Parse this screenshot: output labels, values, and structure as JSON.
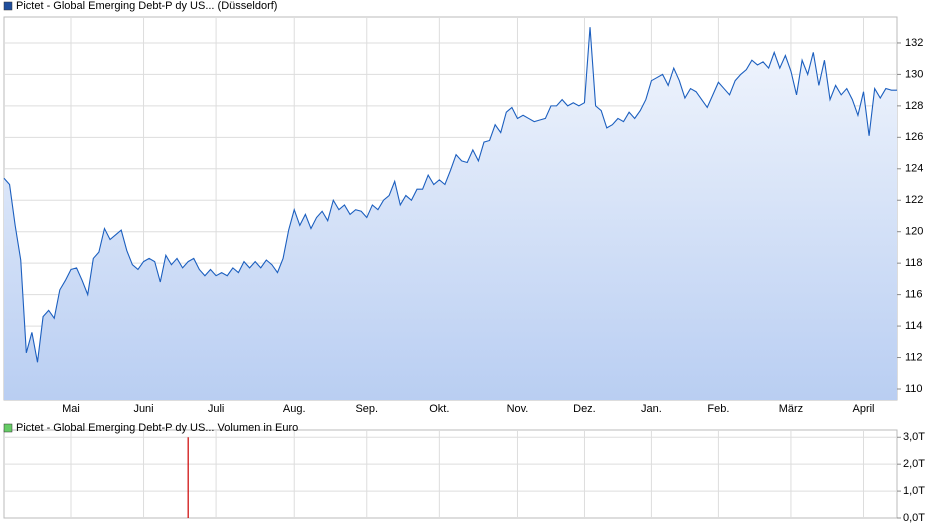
{
  "chart_data": [
    {
      "type": "line",
      "series": [
        {
          "name": "Pictet - Global Emerging Debt-P dy US... (Düsseldorf)",
          "color": "#1c5fbf",
          "legend_color": "#1f4e9c",
          "values": [
            123.4,
            123,
            120.4,
            118.2,
            112.3,
            113.6,
            111.7,
            114.6,
            115,
            114.5,
            116.3,
            116.9,
            117.6,
            117.7,
            116.9,
            116,
            118.3,
            118.7,
            120.2,
            119.5,
            119.8,
            120.1,
            118.8,
            117.9,
            117.6,
            118.1,
            118.3,
            118.1,
            116.8,
            118.5,
            117.9,
            118.3,
            117.7,
            118.1,
            118.3,
            117.6,
            117.2,
            117.6,
            117.2,
            117.4,
            117.2,
            117.7,
            117.4,
            118.1,
            117.7,
            118.1,
            117.7,
            118.2,
            117.9,
            117.4,
            118.3,
            120.1,
            121.4,
            120.4,
            121.1,
            120.2,
            120.9,
            121.3,
            120.7,
            122,
            121.4,
            121.7,
            121.1,
            121.4,
            121.3,
            120.9,
            121.7,
            121.4,
            122,
            122.3,
            123.2,
            121.7,
            122.3,
            122,
            122.7,
            122.7,
            123.6,
            123,
            123.3,
            123,
            123.9,
            124.9,
            124.5,
            124.4,
            125.2,
            124.5,
            125.7,
            125.8,
            126.8,
            126.3,
            127.6,
            127.9,
            127.2,
            127.4,
            127.2,
            127,
            127.1,
            127.2,
            128,
            128,
            128.4,
            128,
            128.2,
            128,
            128.2,
            133,
            128,
            127.7,
            126.6,
            126.8,
            127.2,
            127,
            127.6,
            127.2,
            127.7,
            128.4,
            129.6,
            129.8,
            130,
            129.3,
            130.4,
            129.6,
            128.5,
            129.1,
            128.9,
            128.4,
            127.9,
            128.7,
            129.5,
            129.1,
            128.7,
            129.6,
            130,
            130.3,
            130.9,
            130.6,
            130.8,
            130.4,
            131.4,
            130.4,
            131.2,
            130.2,
            128.7,
            130.9,
            130,
            131.4,
            129.3,
            130.9,
            128.4,
            129.3,
            128.7,
            129.1,
            128.4,
            127.4,
            128.9,
            126.1,
            129.1,
            128.5,
            129.1,
            129,
            129
          ]
        }
      ],
      "xlim": [
        0,
        160
      ],
      "xticks": [
        {
          "value": 12,
          "label": "Mai"
        },
        {
          "value": 25,
          "label": "Juni"
        },
        {
          "value": 38,
          "label": "Juli"
        },
        {
          "value": 52,
          "label": "Aug."
        },
        {
          "value": 65,
          "label": "Sep."
        },
        {
          "value": 78,
          "label": "Okt."
        },
        {
          "value": 92,
          "label": "Nov."
        },
        {
          "value": 104,
          "label": "Dez."
        },
        {
          "value": 116,
          "label": "Jan."
        },
        {
          "value": 128,
          "label": "Feb."
        },
        {
          "value": 141,
          "label": "März"
        },
        {
          "value": 154,
          "label": "April"
        }
      ],
      "ylim": [
        109.3,
        133.65
      ],
      "yticks": [
        110,
        112,
        114,
        116,
        118,
        120,
        122,
        124,
        126,
        128,
        130,
        132
      ],
      "grid": true
    },
    {
      "type": "bar",
      "series": [
        {
          "name": "Pictet - Global Emerging Debt-P dy US... Volumen in Euro",
          "color": "#cc0000",
          "legend_color": "#66cc66",
          "values": [
            {
              "x": 33,
              "value": 3
            }
          ]
        }
      ],
      "xlim": [
        0,
        160
      ],
      "ylim": [
        0,
        3.27
      ],
      "yticks": [
        {
          "value": 0,
          "label": "0,0T"
        },
        {
          "value": 1,
          "label": "1,0T"
        },
        {
          "value": 2,
          "label": "2,0T"
        },
        {
          "value": 3,
          "label": "3,0T"
        }
      ],
      "grid": true
    }
  ]
}
